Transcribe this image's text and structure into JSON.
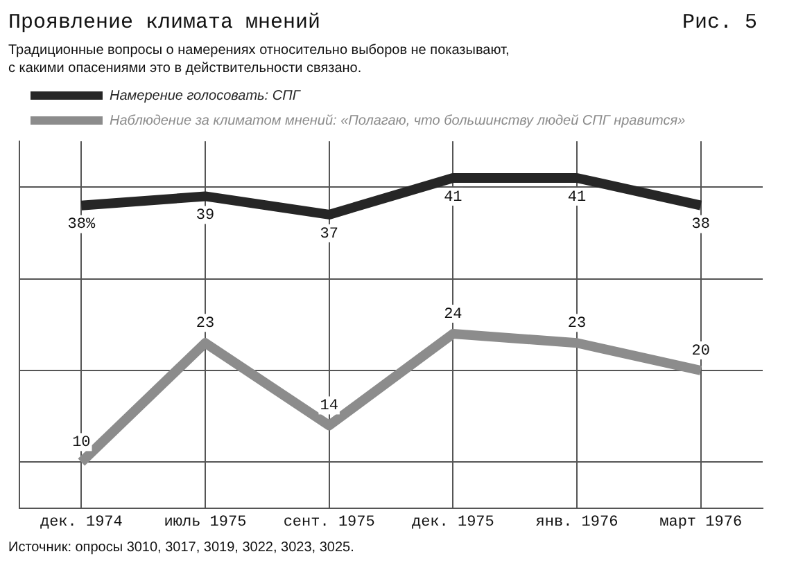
{
  "chart_data": {
    "type": "line",
    "title": "Проявление климата мнений",
    "subtitle": "Традиционные вопросы о намерениях относительно выборов не показывают,\nс какими опасениями это в действительности связано.",
    "categories": [
      "дек. 1974",
      "июль 1975",
      "сент. 1975",
      "дек. 1975",
      "янв. 1976",
      "март 1976"
    ],
    "series": [
      {
        "name": "Намерение голосовать: СПГ",
        "color": "#262626",
        "values": [
          38,
          39,
          37,
          41,
          41,
          38
        ],
        "value_labels": [
          "38%",
          "39",
          "37",
          "41",
          "41",
          "38"
        ]
      },
      {
        "name": "Наблюдение за климатом мнений: «Полагаю, что большинству людей СПГ нравится»",
        "color": "#8c8c8c",
        "values": [
          10,
          23,
          14,
          24,
          23,
          20
        ],
        "value_labels": [
          "10",
          "23",
          "14",
          "24",
          "23",
          "20"
        ]
      }
    ],
    "ylim": [
      5,
      45
    ],
    "yticks": [
      {
        "value": 10,
        "label": null
      },
      {
        "value": 20,
        "label": null
      },
      {
        "value": 30,
        "label": null
      },
      {
        "value": 40,
        "label": null
      }
    ],
    "tick_labels": "x",
    "grid": true,
    "legend": "top left",
    "marker": "none",
    "line_style": "solid",
    "annotations": [
      "Рис. 5",
      "Источник: опросы 3010, 3017, 3019, 3022, 3023, 3025."
    ]
  }
}
